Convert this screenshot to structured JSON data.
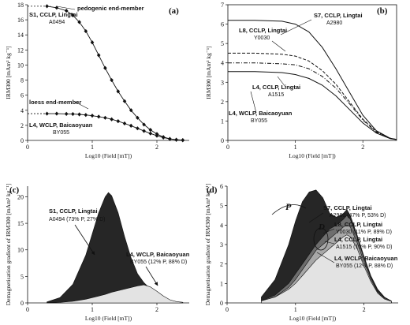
{
  "chart_data": [
    {
      "panel": "(a)",
      "type": "line",
      "xlabel": "Log10 (Field [mT])",
      "ylabel": "IRM300 [mAm² kg⁻¹]",
      "xlim": [
        0,
        2.5
      ],
      "ylim": [
        0,
        18
      ],
      "xticks": [
        "0",
        "1",
        "2"
      ],
      "yticks": [
        "0",
        "2",
        "4",
        "6",
        "8",
        "10",
        "12",
        "14",
        "16",
        "18"
      ],
      "series": [
        {
          "name": "S1, CCLP, Lingtai",
          "sample": "A0494",
          "x": [
            0.3,
            0.45,
            0.6,
            0.7,
            0.8,
            0.9,
            1.0,
            1.1,
            1.2,
            1.3,
            1.4,
            1.5,
            1.6,
            1.7,
            1.8,
            1.9,
            2.0,
            2.1,
            2.2,
            2.3,
            2.4
          ],
          "y": [
            17.8,
            17.6,
            17.2,
            16.6,
            15.7,
            14.5,
            13.0,
            11.3,
            9.6,
            8.0,
            6.5,
            5.2,
            4.0,
            3.0,
            2.1,
            1.4,
            0.85,
            0.45,
            0.2,
            0.08,
            0.03
          ]
        },
        {
          "name": "L4, WCLP, Baicaoyuan",
          "sample": "BY055",
          "x": [
            0.3,
            0.45,
            0.6,
            0.7,
            0.8,
            0.9,
            1.0,
            1.1,
            1.2,
            1.3,
            1.4,
            1.5,
            1.6,
            1.7,
            1.8,
            1.9,
            2.0,
            2.1,
            2.2,
            2.3,
            2.4
          ],
          "y": [
            3.55,
            3.55,
            3.52,
            3.5,
            3.45,
            3.38,
            3.28,
            3.15,
            3.0,
            2.8,
            2.55,
            2.25,
            1.95,
            1.6,
            1.25,
            0.92,
            0.62,
            0.38,
            0.2,
            0.09,
            0.04
          ]
        }
      ],
      "hlines": [
        17.8,
        3.55
      ],
      "annotations": [
        "pedogenic end-member",
        "loess end-member"
      ]
    },
    {
      "panel": "(b)",
      "type": "line",
      "xlabel": "Log10 (Field [mT])",
      "ylabel": "IRM300 [mAm² kg⁻¹]",
      "xlim": [
        0,
        2.5
      ],
      "ylim": [
        0,
        7
      ],
      "xticks": [
        "0",
        "1",
        "2"
      ],
      "yticks": [
        "0",
        "1",
        "2",
        "3",
        "4",
        "5",
        "6",
        "7"
      ],
      "x": [
        0,
        0.4,
        0.8,
        1.0,
        1.2,
        1.4,
        1.6,
        1.8,
        2.0,
        2.2,
        2.4,
        2.5
      ],
      "series": [
        {
          "name": "S7, CCLP, Lingtai",
          "sample": "A2980",
          "style": "solid",
          "y": [
            6.2,
            6.2,
            6.15,
            6.0,
            5.6,
            4.8,
            3.7,
            2.5,
            1.3,
            0.5,
            0.12,
            0.05
          ]
        },
        {
          "name": "L8, CCLP, Lingtai",
          "sample": "Y0030",
          "style": "dashed",
          "y": [
            4.5,
            4.5,
            4.45,
            4.35,
            4.1,
            3.6,
            2.9,
            2.0,
            1.1,
            0.45,
            0.12,
            0.05
          ]
        },
        {
          "name": "L4, CCLP, Lingtai",
          "sample": "A1515",
          "style": "dash-dot",
          "y": [
            4.0,
            4.0,
            3.95,
            3.9,
            3.7,
            3.3,
            2.7,
            1.9,
            1.05,
            0.42,
            0.1,
            0.04
          ]
        },
        {
          "name": "L4, WCLP, Baicaoyuan",
          "sample": "BY055",
          "style": "solid",
          "y": [
            3.55,
            3.55,
            3.5,
            3.4,
            3.2,
            2.85,
            2.3,
            1.6,
            0.9,
            0.38,
            0.1,
            0.04
          ]
        }
      ]
    },
    {
      "panel": "(c)",
      "type": "area",
      "xlabel": "Log10 (Field [mT])",
      "ylabel": "Demagnetisation gradient of IRM300 [mAm² kg⁻¹]",
      "xlim": [
        0,
        2.5
      ],
      "ylim": [
        0,
        22
      ],
      "xticks": [
        "0",
        "1",
        "2"
      ],
      "yticks": [
        "0",
        "5",
        "10",
        "15",
        "20"
      ],
      "x": [
        0.3,
        0.5,
        0.7,
        0.9,
        1.0,
        1.1,
        1.2,
        1.25,
        1.3,
        1.4,
        1.5,
        1.6,
        1.7,
        1.8,
        1.9,
        2.0,
        2.1,
        2.2,
        2.3,
        2.4
      ],
      "series": [
        {
          "name": "S1, CCLP, Lingtai",
          "sample": "A0494",
          "composition": "(73% P, 27% D)",
          "fill": "#262626",
          "y": [
            0.2,
            1.0,
            3.5,
            9.0,
            13.0,
            17.0,
            20.0,
            20.8,
            20.2,
            17.0,
            12.5,
            8.5,
            5.5,
            3.8,
            2.6,
            1.8,
            1.0,
            0.5,
            0.2,
            0.1
          ]
        },
        {
          "name": "L4, WCLP, Baicaoyuan",
          "sample": "BY055",
          "composition": "(12% P, 88% D)",
          "fill": "#e3e3e3",
          "y": [
            0.05,
            0.1,
            0.3,
            0.7,
            1.0,
            1.3,
            1.6,
            1.8,
            2.0,
            2.3,
            2.6,
            2.9,
            3.2,
            3.4,
            3.0,
            2.2,
            1.3,
            0.6,
            0.25,
            0.1
          ]
        }
      ]
    },
    {
      "panel": "(d)",
      "type": "area",
      "xlabel": "Log10 (Field [mT])",
      "ylabel": "Demagnetisation gradient of IRM300 [mAm² kg⁻¹]",
      "xlim": [
        0,
        2.5
      ],
      "ylim": [
        0,
        6
      ],
      "xticks": [
        "0",
        "1",
        "2"
      ],
      "yticks": [
        "0",
        "1",
        "2",
        "3",
        "4",
        "5",
        "6"
      ],
      "x": [
        0.5,
        0.7,
        0.9,
        1.0,
        1.1,
        1.2,
        1.3,
        1.4,
        1.5,
        1.6,
        1.7,
        1.75,
        1.8,
        1.9,
        2.0,
        2.1,
        2.2,
        2.3,
        2.4
      ],
      "series": [
        {
          "name": "S7, CCLP, Lingtai",
          "sample": "A2980",
          "composition": "(47% P, 53% D)",
          "fill": "#262626",
          "y": [
            0.3,
            1.2,
            3.0,
            4.2,
            5.2,
            5.7,
            5.8,
            5.4,
            4.6,
            4.4,
            4.6,
            4.8,
            4.5,
            3.5,
            2.4,
            1.4,
            0.7,
            0.3,
            0.1
          ]
        },
        {
          "name": "L8, CCLP, Lingtai",
          "sample": "Y0030",
          "composition": "(11% P, 89% D)",
          "fill": "#6e6e6e",
          "y": [
            0.1,
            0.4,
            1.0,
            1.5,
            2.0,
            2.5,
            3.0,
            3.4,
            3.8,
            4.0,
            4.3,
            4.5,
            4.3,
            3.4,
            2.3,
            1.3,
            0.6,
            0.25,
            0.1
          ]
        },
        {
          "name": "L4, CCLP, Lingtai",
          "sample": "A1515",
          "composition": "(10% P, 90% D)",
          "fill": "#a8a8a8",
          "y": [
            0.1,
            0.3,
            0.8,
            1.2,
            1.7,
            2.2,
            2.7,
            3.0,
            3.3,
            3.6,
            3.9,
            4.0,
            3.9,
            3.1,
            2.1,
            1.2,
            0.55,
            0.2,
            0.08
          ]
        },
        {
          "name": "L4, WCLP, Baicaoyuan",
          "sample": "BY055",
          "composition": "(12% P, 88% D)",
          "fill": "#e3e3e3",
          "y": [
            0.1,
            0.3,
            0.7,
            1.0,
            1.4,
            1.8,
            2.2,
            2.5,
            2.8,
            3.1,
            3.4,
            3.5,
            3.4,
            2.8,
            1.9,
            1.1,
            0.5,
            0.2,
            0.08
          ]
        }
      ],
      "annotations": [
        "P",
        "D"
      ]
    }
  ],
  "labels": {
    "a": {
      "panel": "(a)",
      "pedogenic": "pedogenic end-member",
      "loess": "loess end-member",
      "s1": "S1, CCLP, Lingtai",
      "s1_sample": "A0494",
      "l4": "L4, WCLP, Baicaoyuan",
      "l4_sample": "BY055"
    },
    "b": {
      "panel": "(b)",
      "s7": "S7, CCLP, Lingtai",
      "s7_sample": "A2980",
      "l8": "L8, CCLP, Lingtai",
      "l8_sample": "Y0030",
      "l4c": "L4, CCLP, Lingtai",
      "l4c_sample": "A1515",
      "l4w": "L4, WCLP, Baicaoyuan",
      "l4w_sample": "BY055"
    },
    "c": {
      "panel": "(c)",
      "s1": "S1, CCLP, Lingtai",
      "s1_sample": "A0494  (73% P, 27% D)",
      "l4": "L4, WCLP, Baicaoyuan",
      "l4_sample": "BY055  (12% P, 88% D)"
    },
    "d": {
      "panel": "(d)",
      "s7": "S7, CCLP, Lingtai",
      "s7_sample": "A2980   (47% P, 53% D)",
      "l8": "L8, CCLP, Lingtai",
      "l8_sample": "Y0030   (11% P, 89% D)",
      "l4c": "L4, CCLP, Lingtai",
      "l4c_sample": "A1515   (10% P, 90% D)",
      "l4w": "L4, WCLP, Baicaoyuan",
      "l4w_sample": "BY055   (12% P, 88% D)",
      "p": "P",
      "dd": "D"
    }
  }
}
